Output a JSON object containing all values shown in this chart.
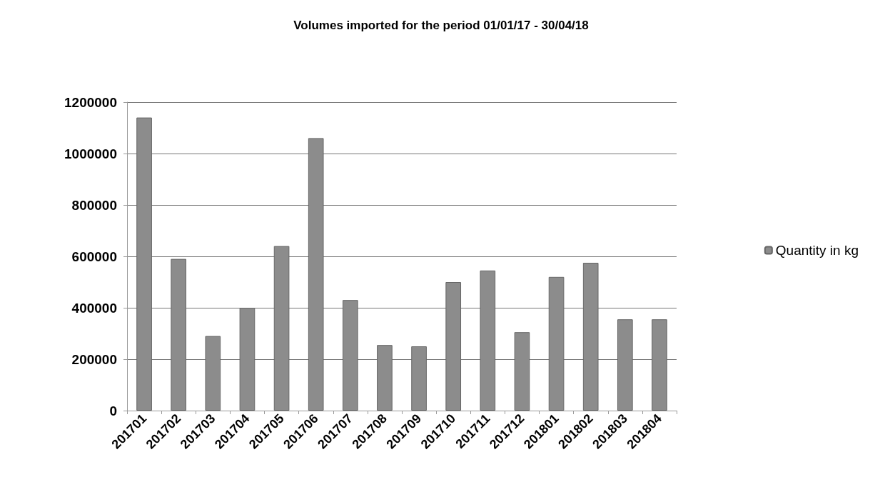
{
  "chart_data": {
    "type": "bar",
    "title": "Volumes imported for the period 01/01/17 - 30/04/18",
    "categories": [
      "201701",
      "201702",
      "201703",
      "201704",
      "201705",
      "201706",
      "201707",
      "201708",
      "201709",
      "201710",
      "201711",
      "201712",
      "201801",
      "201802",
      "201803",
      "201804"
    ],
    "series": [
      {
        "name": "Quantity in kg",
        "color": "#8c8c8c",
        "values": [
          1140000,
          590000,
          290000,
          400000,
          640000,
          1060000,
          430000,
          255000,
          250000,
          500000,
          545000,
          305000,
          520000,
          575000,
          355000,
          355000
        ]
      }
    ],
    "ylim": [
      0,
      1200000
    ],
    "yticks": [
      0,
      200000,
      400000,
      600000,
      800000,
      1000000,
      1200000
    ],
    "grid": "y",
    "legend": "right"
  }
}
